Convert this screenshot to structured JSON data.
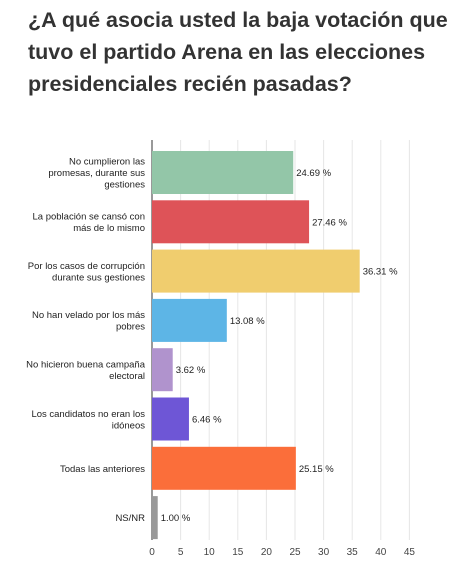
{
  "chart_data": {
    "type": "bar",
    "orientation": "horizontal",
    "title": "¿A qué asocia usted la baja votación que tuvo el partido Arena en las elecciones presidenciales recién pasadas?",
    "categories": [
      [
        "No cumplieron las",
        "promesas, durante sus",
        "gestiones"
      ],
      [
        "La población se cansó con",
        "más de lo mismo"
      ],
      [
        "Por los casos de corrupción",
        "durante sus gestiones"
      ],
      [
        "No han velado por los más",
        "pobres"
      ],
      [
        "No hicieron buena campaña",
        "electoral"
      ],
      [
        "Los candidatos no eran los",
        "idóneos"
      ],
      [
        "Todas las anteriores"
      ],
      [
        "NS/NR"
      ]
    ],
    "values": [
      24.69,
      27.46,
      36.31,
      13.08,
      3.62,
      6.46,
      25.15,
      1.0
    ],
    "value_labels": [
      "24.69 %",
      "27.46 %",
      "36.31 %",
      "13.08 %",
      "3.62 %",
      "6.46 %",
      "25.15 %",
      "1.00 %"
    ],
    "colors": [
      "#93c6a8",
      "#de5358",
      "#f0cd6e",
      "#5db5e6",
      "#b093cd",
      "#6e56d6",
      "#fb6e3a",
      "#999999"
    ],
    "xlim": [
      0,
      45
    ],
    "xticks": [
      "0",
      "5",
      "10",
      "15",
      "20",
      "25",
      "30",
      "35",
      "40",
      "45"
    ],
    "grid": true,
    "legend": "none"
  }
}
